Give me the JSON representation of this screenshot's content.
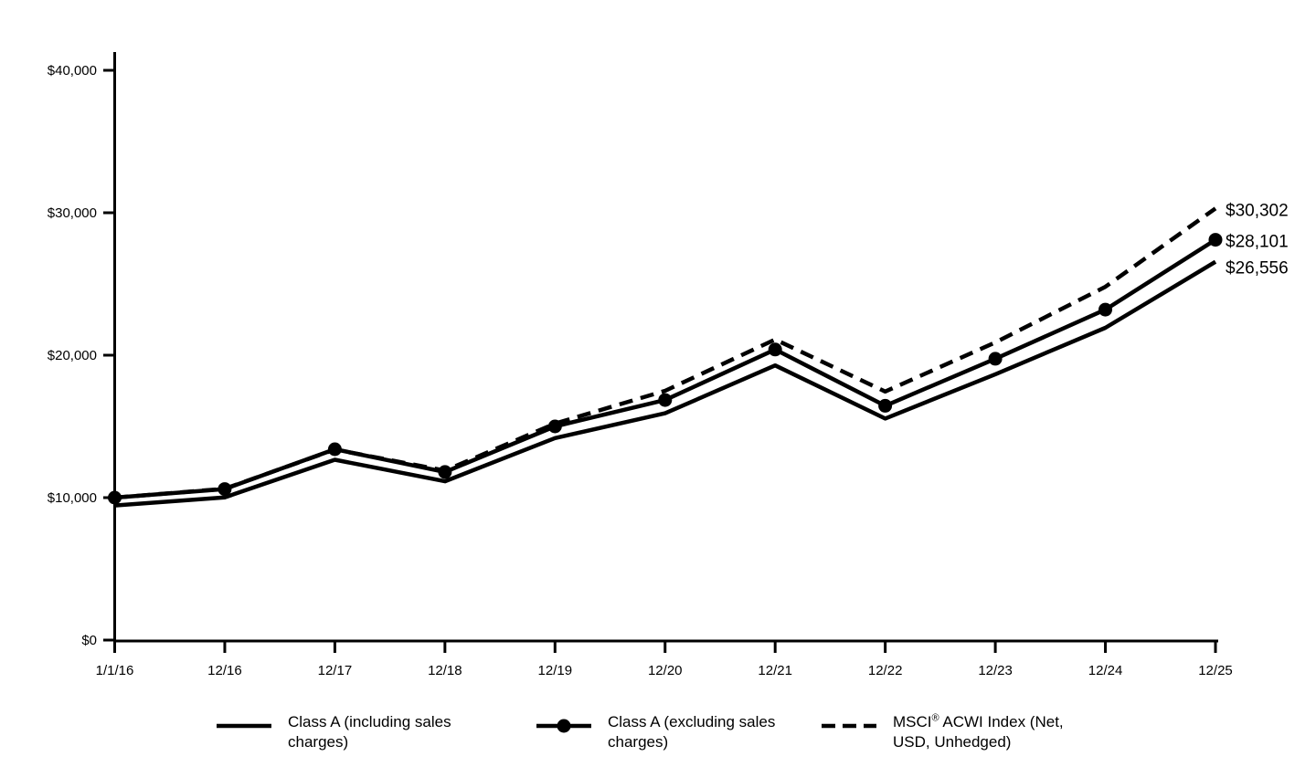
{
  "figure": {
    "background_color": "#ffffff",
    "axis_color": "#000000",
    "series_color": "#000000",
    "text_color": "#000000"
  },
  "chart_data": {
    "type": "line",
    "title": "",
    "xlabel": "",
    "ylabel": "",
    "grid": false,
    "legend_position": "bottom",
    "ylim": [
      0,
      40000
    ],
    "y_ticks": [
      {
        "value": 0,
        "label": "$0"
      },
      {
        "value": 10000,
        "label": "$10,000"
      },
      {
        "value": 20000,
        "label": "$20,000"
      },
      {
        "value": 30000,
        "label": "$30,000"
      },
      {
        "value": 40000,
        "label": "$40,000"
      }
    ],
    "categories": [
      "1/1/16",
      "12/16",
      "12/17",
      "12/18",
      "12/19",
      "12/20",
      "12/21",
      "12/22",
      "12/23",
      "12/24",
      "12/25"
    ],
    "series": [
      {
        "key": "class-a-including-sales-charges",
        "name": "Class A (including sales charges)",
        "line_style": "solid",
        "marker": "none",
        "end_label": "$26,556",
        "values": [
          9450,
          10020,
          12660,
          11150,
          14180,
          15920,
          19280,
          15550,
          18660,
          21920,
          26556
        ]
      },
      {
        "key": "class-a-excluding-sales-charges",
        "name": "Class A (excluding sales charges)",
        "line_style": "solid",
        "marker": "circle",
        "end_label": "$28,101",
        "values": [
          10000,
          10600,
          13400,
          11800,
          15000,
          16850,
          20400,
          16450,
          19750,
          23200,
          28101
        ]
      },
      {
        "key": "msci-acwi-index",
        "name": "MSCI® ACWI Index (Net, USD, Unhedged)",
        "line_style": "dashed",
        "marker": "none",
        "end_label": "$30,302",
        "values": [
          10000,
          10620,
          13380,
          11900,
          15200,
          17500,
          21100,
          17450,
          20900,
          24800,
          30302
        ]
      }
    ]
  }
}
